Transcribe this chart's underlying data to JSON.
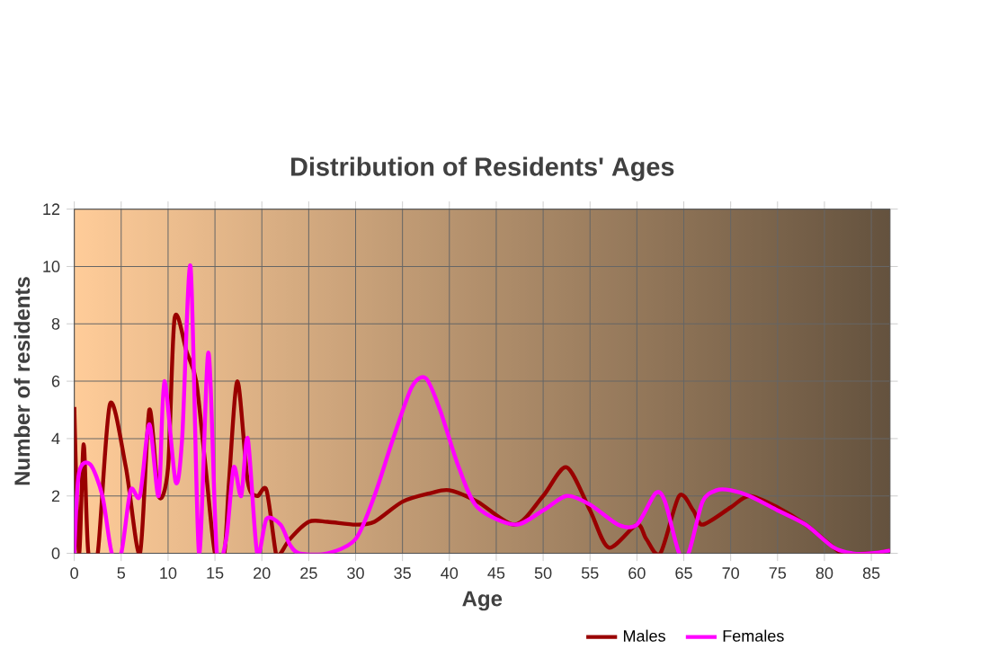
{
  "chart_data": {
    "type": "line",
    "title": "Distribution of Residents' Ages",
    "xlabel": "Age",
    "ylabel": "Number of residents",
    "xlim": [
      0,
      87
    ],
    "xticks": [
      0,
      5,
      10,
      15,
      20,
      25,
      30,
      35,
      40,
      45,
      50,
      55,
      60,
      65,
      70,
      75,
      80,
      85
    ],
    "ylim": [
      0,
      12
    ],
    "yticks": [
      0,
      2,
      4,
      6,
      8,
      10,
      12
    ],
    "grid": true,
    "legend": "bottom",
    "series": [
      {
        "name": "Males",
        "color": "#990000",
        "x": [
          0,
          0.5,
          1,
          1.5,
          2.5,
          3.8,
          5.5,
          7,
          8,
          9,
          10,
          10.7,
          12,
          13,
          14,
          15,
          16,
          16.5,
          17.4,
          18.5,
          19.5,
          20.5,
          21.5,
          22,
          23,
          25,
          27,
          30,
          32,
          35,
          38,
          40,
          43,
          47,
          50,
          52.5,
          55,
          57,
          60,
          61,
          62.5,
          64.5,
          66,
          67,
          70,
          72,
          75,
          78,
          81,
          82,
          85,
          87
        ],
        "values": [
          5.1,
          0,
          3.8,
          0,
          0,
          5.2,
          3,
          0,
          5,
          2,
          3,
          8.2,
          7,
          6,
          3,
          0,
          0,
          2.5,
          6,
          2.5,
          2,
          2.2,
          0,
          0,
          0.5,
          1.1,
          1.1,
          1,
          1.1,
          1.8,
          2.1,
          2.2,
          1.8,
          1,
          2,
          3,
          1.5,
          0.2,
          1,
          0.5,
          0,
          2,
          1.5,
          1,
          1.6,
          2,
          1.6,
          1,
          0.2,
          0,
          0,
          0.1
        ]
      },
      {
        "name": "Females",
        "color": "#ff00ff",
        "x": [
          0,
          0.5,
          1.7,
          3,
          4,
          5,
          6,
          7,
          8,
          9,
          9.6,
          10.8,
          11.5,
          12.4,
          13.3,
          14.3,
          15.2,
          16.2,
          17,
          17.8,
          18.5,
          19.5,
          20.5,
          22,
          23,
          24,
          27,
          30,
          32,
          34,
          36,
          37.5,
          39,
          41,
          43,
          47,
          50,
          52.5,
          55,
          58,
          60,
          62,
          63,
          64.5,
          65.5,
          67,
          68.5,
          70,
          72,
          75,
          78,
          81,
          83,
          85,
          87
        ],
        "values": [
          0,
          2.8,
          3.1,
          2,
          0,
          0,
          2.2,
          2,
          4.5,
          2,
          6,
          2.5,
          4,
          10,
          0,
          7,
          0,
          0.5,
          3,
          2,
          4,
          0,
          1.2,
          1,
          0.3,
          0,
          0,
          0.5,
          2,
          4,
          5.8,
          6.1,
          5,
          3,
          1.6,
          1,
          1.5,
          2,
          1.7,
          1,
          1,
          2.1,
          1.8,
          0,
          0,
          1.8,
          2.2,
          2.2,
          2,
          1.5,
          1,
          0.2,
          0,
          0,
          0.1
        ]
      }
    ]
  }
}
